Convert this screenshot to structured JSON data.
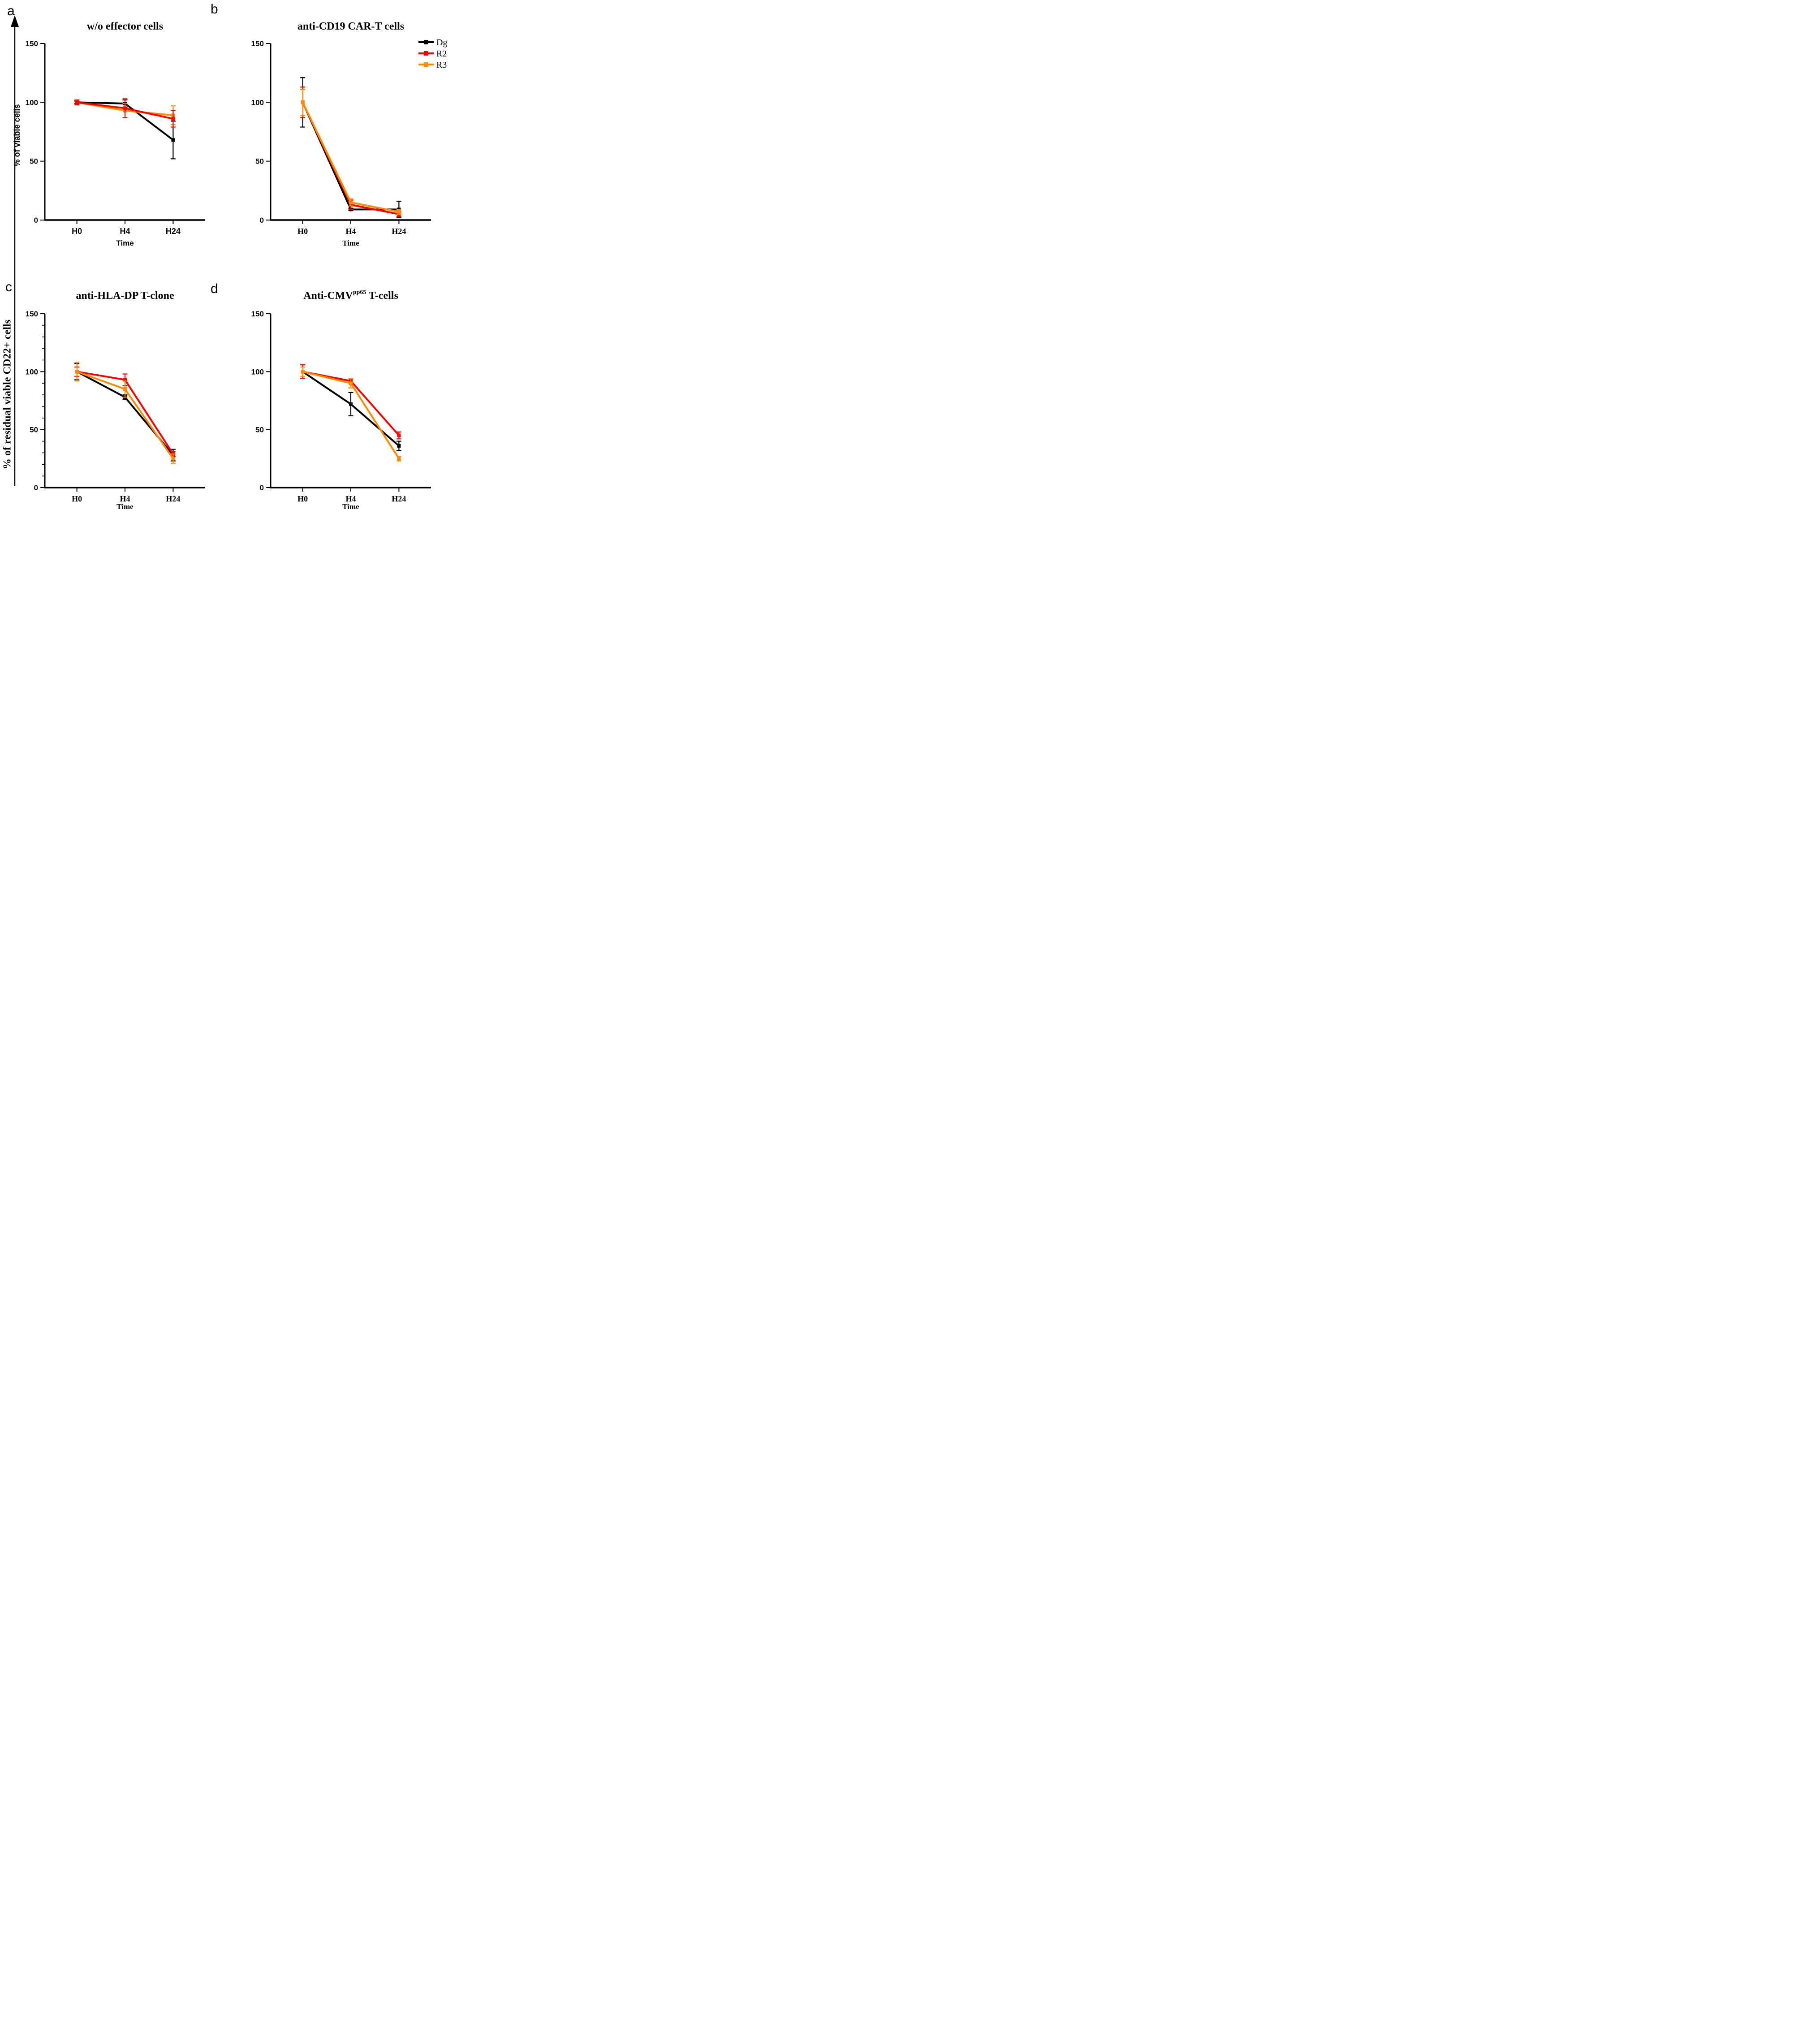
{
  "figure": {
    "panel_letters": {
      "a": "a",
      "b": "b",
      "c": "c",
      "d": "d"
    },
    "left_axis_label": "% of residual viable CD22+ cells",
    "legend": {
      "position": "right-of-panel-b",
      "items": [
        {
          "label": "Dg",
          "color": "#000000"
        },
        {
          "label": "R2",
          "color": "#ff0000"
        },
        {
          "label": "R3",
          "color": "#ff8a00"
        }
      ]
    },
    "colors": {
      "dg": "#000000",
      "r2": "#ff0000",
      "r3": "#ff8a00"
    }
  },
  "chart_data": [
    {
      "id": "a",
      "type": "line",
      "title": "w/o effector cells",
      "xlabel": "Time",
      "ylabel": "% of viable cells",
      "categories": [
        "H0",
        "H4",
        "H24"
      ],
      "ylim": [
        0,
        150
      ],
      "yticks": [
        0,
        50,
        100,
        150
      ],
      "y_minor_step": null,
      "tick_font": "sans",
      "grid": false,
      "legend": false,
      "series": [
        {
          "name": "Dg",
          "color": "#000000",
          "values": [
            100,
            99,
            68
          ],
          "errors": [
            1,
            3,
            16
          ]
        },
        {
          "name": "R2",
          "color": "#ff0000",
          "values": [
            100,
            95,
            86
          ],
          "errors": [
            2,
            8,
            7
          ]
        },
        {
          "name": "R3",
          "color": "#ff8a00",
          "values": [
            100,
            93,
            89
          ],
          "errors": [
            2,
            6,
            8
          ]
        }
      ],
      "draw_order": [
        0,
        2,
        1
      ]
    },
    {
      "id": "b",
      "type": "line",
      "title": "anti-CD19 CAR-T cells",
      "xlabel": "Time",
      "ylabel": "",
      "categories": [
        "H0",
        "H4",
        "H24"
      ],
      "ylim": [
        0,
        150
      ],
      "yticks": [
        0,
        50,
        100,
        150
      ],
      "y_minor_step": null,
      "tick_font": "serif",
      "grid": false,
      "legend": true,
      "series": [
        {
          "name": "Dg",
          "color": "#000000",
          "values": [
            100,
            9,
            9
          ],
          "errors": [
            21,
            1,
            7
          ]
        },
        {
          "name": "R2",
          "color": "#ff0000",
          "values": [
            100,
            13,
            5
          ],
          "errors": [
            13,
            4,
            2
          ]
        },
        {
          "name": "R3",
          "color": "#ff8a00",
          "values": [
            100,
            15,
            7
          ],
          "errors": [
            11,
            3,
            2
          ]
        }
      ],
      "draw_order": [
        0,
        1,
        2
      ]
    },
    {
      "id": "c",
      "type": "line",
      "title": "anti-HLA-DP T-clone",
      "xlabel": "Time",
      "ylabel": "",
      "categories": [
        "H0",
        "H4",
        "H24"
      ],
      "ylim": [
        0,
        150
      ],
      "yticks": [
        0,
        50,
        100,
        150
      ],
      "y_minor_step": 10,
      "tick_font": "serif",
      "grid": false,
      "legend": false,
      "series": [
        {
          "name": "Dg",
          "color": "#000000",
          "values": [
            100,
            78,
            28
          ],
          "errors": [
            7,
            2,
            5
          ]
        },
        {
          "name": "R2",
          "color": "#ff0000",
          "values": [
            100,
            93,
            29
          ],
          "errors": [
            4,
            5,
            2
          ]
        },
        {
          "name": "R3",
          "color": "#ff8a00",
          "values": [
            100,
            85,
            25
          ],
          "errors": [
            8,
            7,
            4
          ]
        }
      ],
      "draw_order": [
        0,
        1,
        2
      ]
    },
    {
      "id": "d",
      "type": "line",
      "title": "Anti-CMV^pp65 T-cells",
      "title_parts": {
        "base": "Anti-CMV",
        "sup": "pp65",
        "rest": " T-cells"
      },
      "xlabel": "Time",
      "ylabel": "",
      "categories": [
        "H0",
        "H4",
        "H24"
      ],
      "ylim": [
        0,
        150
      ],
      "yticks": [
        0,
        50,
        100,
        150
      ],
      "y_minor_step": null,
      "tick_font": "serif",
      "grid": false,
      "legend": false,
      "series": [
        {
          "name": "Dg",
          "color": "#000000",
          "values": [
            100,
            72,
            36
          ],
          "errors": [
            6,
            10,
            4
          ]
        },
        {
          "name": "R2",
          "color": "#ff0000",
          "values": [
            100,
            92,
            45
          ],
          "errors": [
            6,
            2,
            3
          ]
        },
        {
          "name": "R3",
          "color": "#ff8a00",
          "values": [
            100,
            90,
            25
          ],
          "errors": [
            4,
            4,
            2
          ]
        }
      ],
      "draw_order": [
        0,
        1,
        2
      ]
    }
  ]
}
